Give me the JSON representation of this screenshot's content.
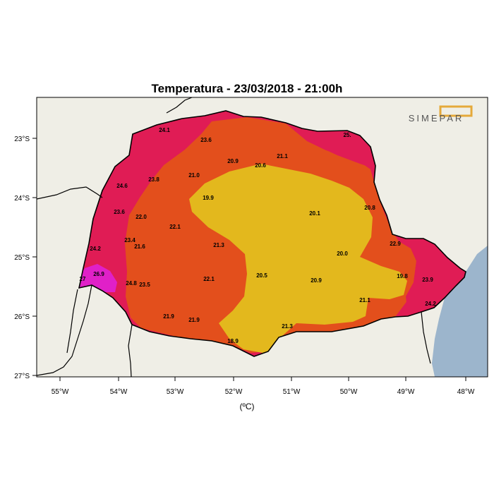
{
  "title": "Temperatura - 23/03/2018 - 21:00h",
  "unit_label": "(ºC)",
  "logo_text": "SIMEPAR",
  "colors": {
    "background_land": "#efeee6",
    "ocean": "#9cb5cc",
    "band_magenta": "#e020c8",
    "band_crimson": "#e01c55",
    "band_orange": "#e34f1c",
    "band_yellow": "#e3b81d",
    "logo_accent": "#e5a93a"
  },
  "axes": {
    "lon_ticks": [
      "55°W",
      "54°W",
      "53°W",
      "52°W",
      "51°W",
      "50°W",
      "49°W",
      "48°W"
    ],
    "lat_ticks": [
      "23°S",
      "24°S",
      "25°S",
      "26°S",
      "27°S"
    ]
  },
  "temperature_labels": [
    {
      "value": "24.1"
    },
    {
      "value": "23.6"
    },
    {
      "value": "25."
    },
    {
      "value": "21.1"
    },
    {
      "value": "20.9"
    },
    {
      "value": "20.6"
    },
    {
      "value": "21.0"
    },
    {
      "value": "24.6"
    },
    {
      "value": "23.8"
    },
    {
      "value": "19.9"
    },
    {
      "value": "20.1"
    },
    {
      "value": "20.8"
    },
    {
      "value": "23.6"
    },
    {
      "value": "22.0"
    },
    {
      "value": "22.1"
    },
    {
      "value": "23.4"
    },
    {
      "value": "21.6"
    },
    {
      "value": "21.3"
    },
    {
      "value": "24.2"
    },
    {
      "value": "22.9"
    },
    {
      "value": "20.0"
    },
    {
      "value": "26.9"
    },
    {
      "value": "27"
    },
    {
      "value": "24.8"
    },
    {
      "value": "23.5"
    },
    {
      "value": "22.1"
    },
    {
      "value": "20.5"
    },
    {
      "value": "20.9"
    },
    {
      "value": "19.8"
    },
    {
      "value": "23.9"
    },
    {
      "value": "21.1"
    },
    {
      "value": "24.2"
    },
    {
      "value": "21.9"
    },
    {
      "value": "21.9"
    },
    {
      "value": "21.3"
    },
    {
      "value": "18.9"
    }
  ]
}
